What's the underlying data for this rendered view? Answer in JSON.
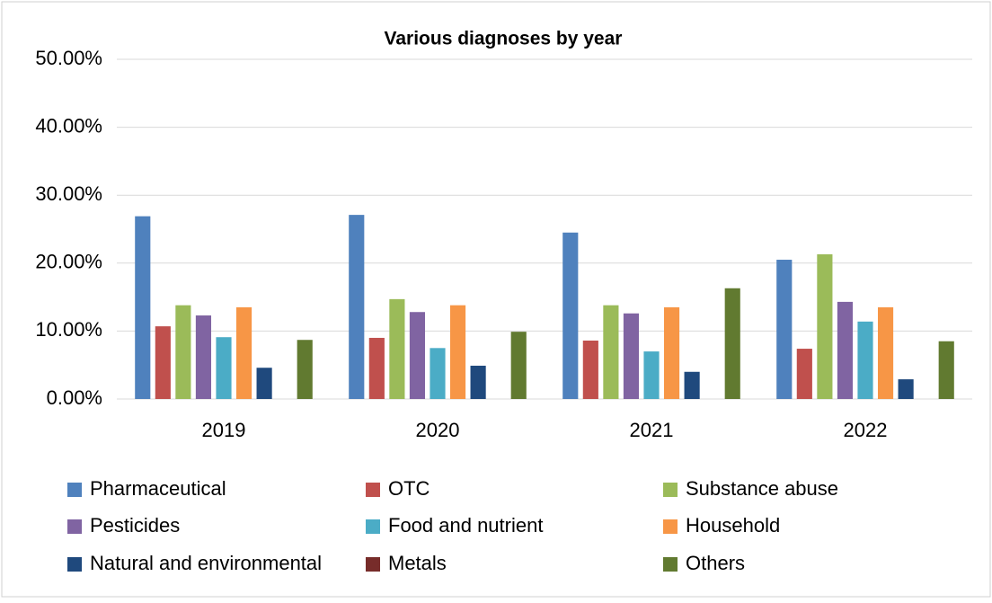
{
  "chart_data": {
    "type": "bar",
    "title": "Various diagnoses by year",
    "categories": [
      "2019",
      "2020",
      "2021",
      "2022"
    ],
    "series": [
      {
        "name": "Pharmaceutical",
        "color": "#4f81bd",
        "values": [
          26.9,
          27.1,
          24.5,
          20.5
        ]
      },
      {
        "name": "OTC",
        "color": "#c0504d",
        "values": [
          10.7,
          9.0,
          8.6,
          7.4
        ]
      },
      {
        "name": "Substance abuse",
        "color": "#9bbb59",
        "values": [
          13.8,
          14.7,
          13.8,
          21.3
        ]
      },
      {
        "name": "Pesticides",
        "color": "#8064a2",
        "values": [
          12.3,
          12.8,
          12.6,
          14.3
        ]
      },
      {
        "name": "Food and nutrient",
        "color": "#4bacc6",
        "values": [
          9.1,
          7.5,
          7.0,
          11.4
        ]
      },
      {
        "name": "Household",
        "color": "#f79646",
        "values": [
          13.5,
          13.8,
          13.5,
          13.5
        ]
      },
      {
        "name": "Natural and environmental",
        "color": "#1f497d",
        "values": [
          4.6,
          4.9,
          4.0,
          2.9
        ]
      },
      {
        "name": "Metals",
        "color": "#772c2a",
        "values": [
          0,
          0,
          0,
          0
        ]
      },
      {
        "name": "Others",
        "color": "#617a30",
        "values": [
          8.7,
          9.9,
          16.3,
          8.5
        ]
      }
    ],
    "ylim": [
      0,
      50
    ],
    "yticks": [
      {
        "value": 0,
        "label": "0.00%"
      },
      {
        "value": 10,
        "label": "10.00%"
      },
      {
        "value": 20,
        "label": "20.00%"
      },
      {
        "value": 30,
        "label": "30.00%"
      },
      {
        "value": 40,
        "label": "40.00%"
      },
      {
        "value": 50,
        "label": "50.00%"
      }
    ],
    "grid": true,
    "legend": "bottom"
  }
}
